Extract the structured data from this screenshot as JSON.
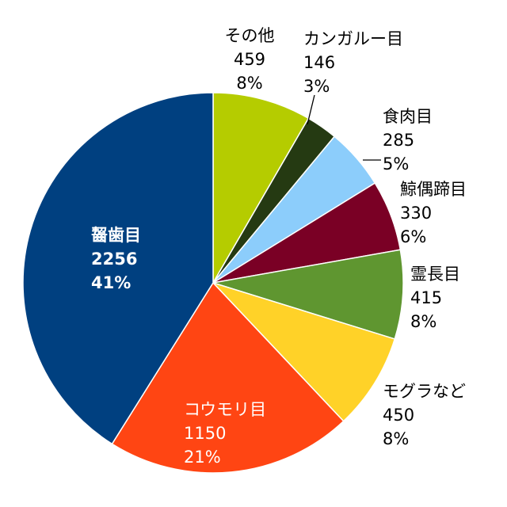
{
  "chart_data": {
    "type": "pie",
    "start": "12 o'clock",
    "direction": "clockwise",
    "slices": [
      {
        "label": "その他",
        "value": 459,
        "percent": "8%",
        "color": "#b5cc00"
      },
      {
        "label": "カンガルー目",
        "value": 146,
        "percent": "3%",
        "color": "#253a12"
      },
      {
        "label": "食肉目",
        "value": 285,
        "percent": "5%",
        "color": "#8ccdfb"
      },
      {
        "label": "鯨偶蹄目",
        "value": 330,
        "percent": "6%",
        "color": "#7a0025"
      },
      {
        "label": "霊長目",
        "value": 415,
        "percent": "8%",
        "color": "#5f9630"
      },
      {
        "label": "モグラなど",
        "value": 450,
        "percent": "8%",
        "color": "#ffd228"
      },
      {
        "label": "コウモリ目",
        "value": 1150,
        "percent": "21%",
        "color": "#ff4513"
      },
      {
        "label": "齧歯目",
        "value": 2256,
        "percent": "41%",
        "color": "#004080"
      }
    ]
  }
}
